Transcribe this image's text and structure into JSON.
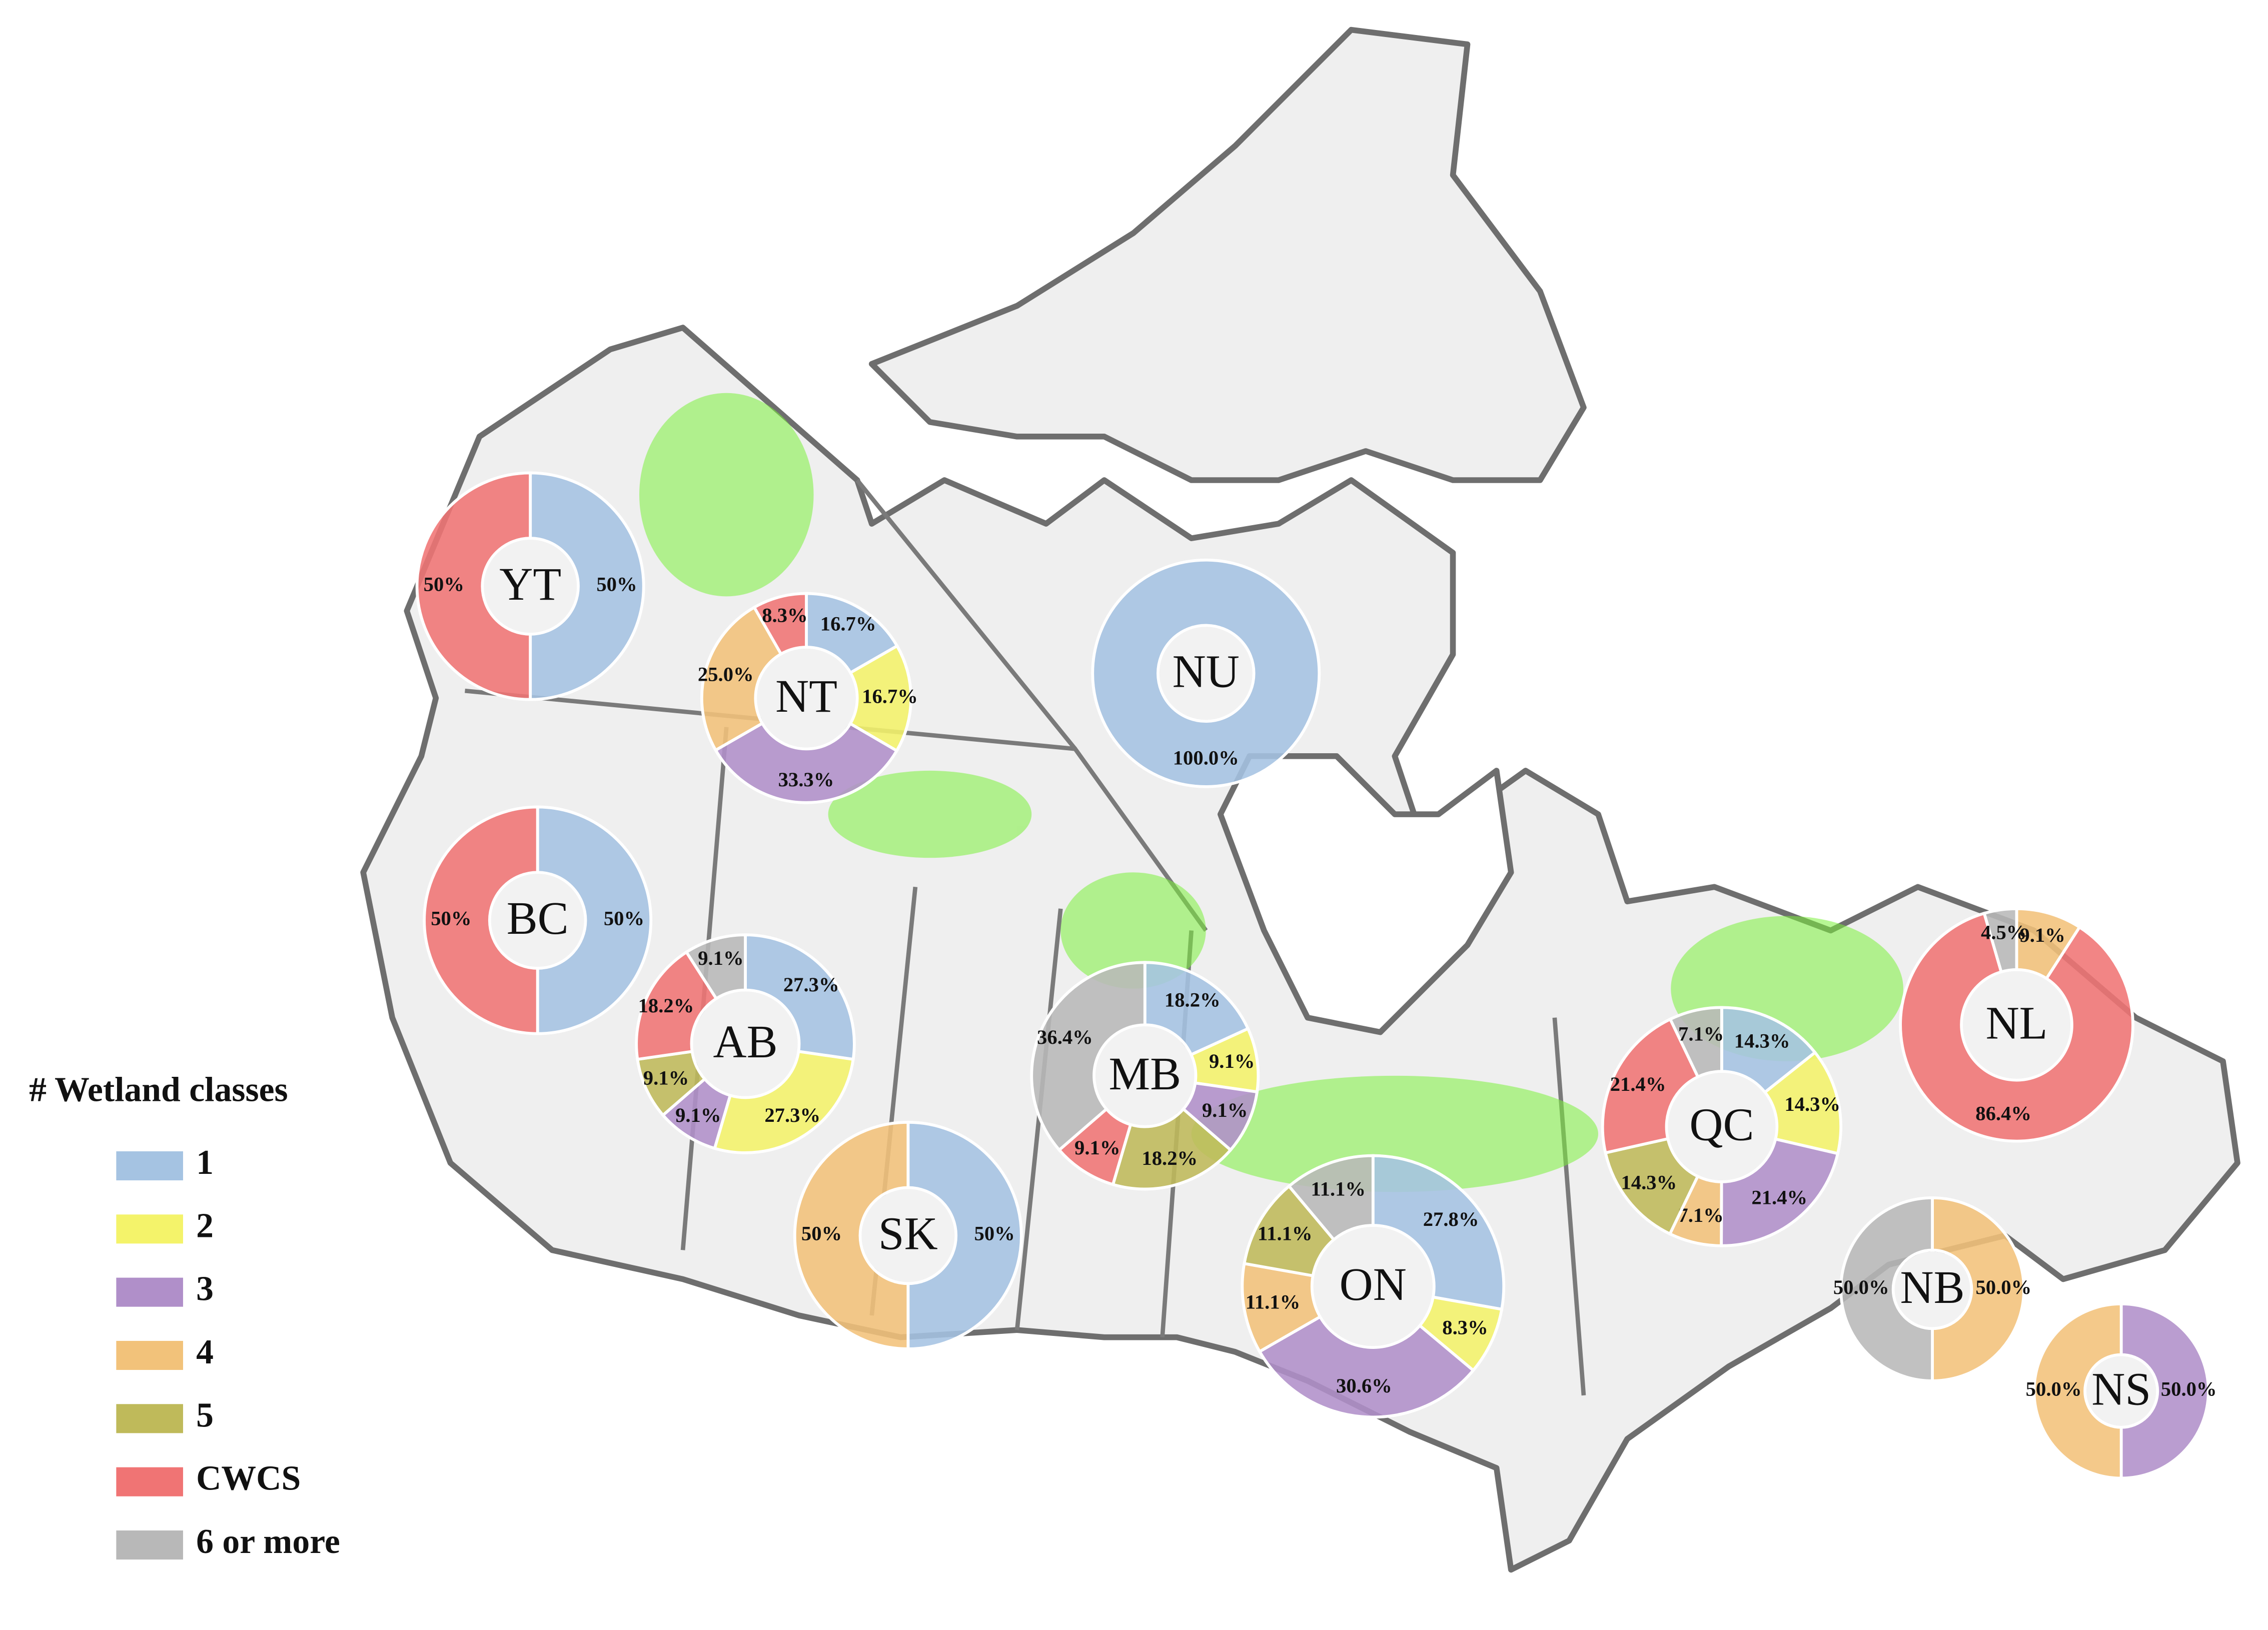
{
  "legend": {
    "title": "# Wetland classes",
    "items": [
      {
        "label": "1",
        "color": "#a5c3e2"
      },
      {
        "label": "2",
        "color": "#f4f36a"
      },
      {
        "label": "3",
        "color": "#b08fc9"
      },
      {
        "label": "4",
        "color": "#f2c27a"
      },
      {
        "label": "5",
        "color": "#bfba5a"
      },
      {
        "label": "CWCS",
        "color": "#f07474"
      },
      {
        "label": "6 or more",
        "color": "#b8b8b8"
      }
    ]
  },
  "chart_data": [
    {
      "type": "pie",
      "title": "YT",
      "categories": [
        "1",
        "CWCS"
      ],
      "values": [
        50,
        50
      ],
      "value_labels": [
        "50%",
        "50%"
      ]
    },
    {
      "type": "pie",
      "title": "NT",
      "categories": [
        "1",
        "2",
        "3",
        "4",
        "CWCS"
      ],
      "values": [
        16.7,
        16.7,
        33.3,
        25.0,
        8.3
      ],
      "value_labels": [
        "16.7%",
        "16.7%",
        "33.3%",
        "25.0%",
        "8.3%"
      ]
    },
    {
      "type": "pie",
      "title": "NU",
      "categories": [
        "1"
      ],
      "values": [
        100.0
      ],
      "value_labels": [
        "100.0%"
      ]
    },
    {
      "type": "pie",
      "title": "BC",
      "categories": [
        "1",
        "CWCS"
      ],
      "values": [
        50,
        50
      ],
      "value_labels": [
        "50%",
        "50%"
      ]
    },
    {
      "type": "pie",
      "title": "AB",
      "categories": [
        "1",
        "2",
        "3",
        "5",
        "CWCS",
        "6 or more"
      ],
      "values": [
        27.3,
        27.3,
        9.1,
        9.1,
        18.2,
        9.1
      ],
      "value_labels": [
        "27.3%",
        "27.3%",
        "9.1%",
        "9.1%",
        "18.2%",
        "9.1%"
      ]
    },
    {
      "type": "pie",
      "title": "MB",
      "categories": [
        "1",
        "2",
        "3",
        "5",
        "CWCS",
        "6 or more"
      ],
      "values": [
        18.2,
        9.1,
        9.1,
        18.2,
        9.1,
        36.4
      ],
      "value_labels": [
        "18.2%",
        "9.1%",
        "9.1%",
        "18.2%",
        "9.1%",
        "36.4%"
      ]
    },
    {
      "type": "pie",
      "title": "SK",
      "categories": [
        "1",
        "4"
      ],
      "values": [
        50,
        50
      ],
      "value_labels": [
        "50%",
        "50%"
      ]
    },
    {
      "type": "pie",
      "title": "ON",
      "categories": [
        "1",
        "2",
        "3",
        "4",
        "5",
        "6 or more"
      ],
      "values": [
        27.8,
        8.3,
        30.6,
        11.1,
        11.1,
        11.1
      ],
      "value_labels": [
        "27.8%",
        "8.3%",
        "30.6%",
        "11.1%",
        "11.1%",
        "11.1%"
      ]
    },
    {
      "type": "pie",
      "title": "QC",
      "categories": [
        "1",
        "2",
        "3",
        "4",
        "5",
        "CWCS",
        "6 or more"
      ],
      "values": [
        14.3,
        14.3,
        21.4,
        7.1,
        14.3,
        21.4,
        7.1
      ],
      "value_labels": [
        "14.3%",
        "14.3%",
        "21.4%",
        "7.1%",
        "14.3%",
        "21.4%",
        "7.1%"
      ]
    },
    {
      "type": "pie",
      "title": "NL",
      "categories": [
        "4",
        "CWCS",
        "6 or more"
      ],
      "values": [
        9.1,
        86.4,
        4.5
      ],
      "value_labels": [
        "9.1%",
        "86.4%",
        "4.5%"
      ]
    },
    {
      "type": "pie",
      "title": "NB",
      "categories": [
        "4",
        "6 or more"
      ],
      "values": [
        50.0,
        50.0
      ],
      "value_labels": [
        "50.0%",
        "50.0%"
      ]
    },
    {
      "type": "pie",
      "title": "NS",
      "categories": [
        "3",
        "4"
      ],
      "values": [
        50.0,
        50.0
      ],
      "value_labels": [
        "50.0%",
        "50.0%"
      ]
    }
  ]
}
